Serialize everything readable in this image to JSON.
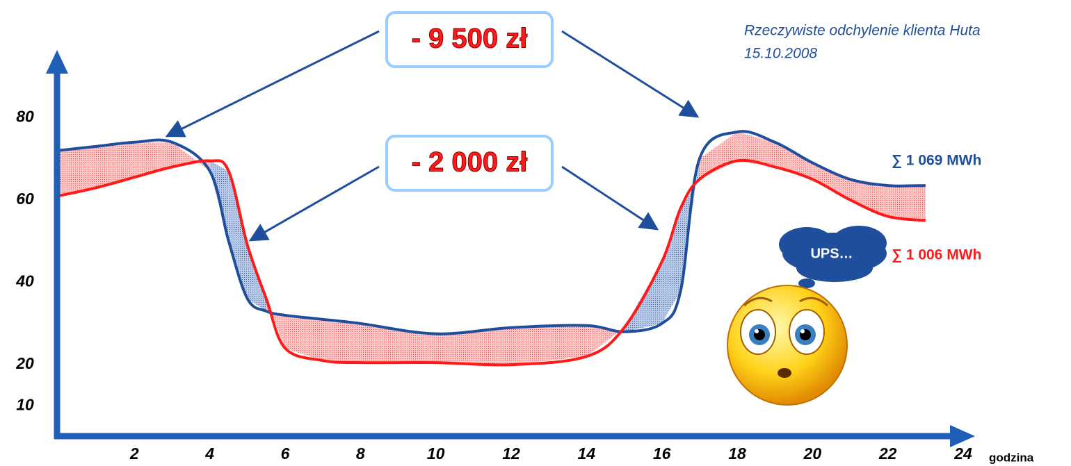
{
  "chart_data": {
    "type": "line",
    "title": "Rzeczywiste odchylenie klienta Huta",
    "subtitle": "15.10.2008",
    "x_label": "godzina",
    "x": [
      0,
      1,
      2,
      3,
      4,
      4.5,
      5,
      5.5,
      6,
      7,
      8,
      10,
      12,
      14,
      15,
      16,
      16.5,
      17,
      18,
      19,
      20,
      21,
      22,
      23
    ],
    "series": [
      {
        "color": "#1f4e9c",
        "total_label": "∑ 1 069 MWh",
        "values": [
          72,
          73,
          74,
          74,
          67,
          50,
          36,
          33,
          32,
          31,
          30,
          27.5,
          29,
          29.5,
          28,
          30,
          38,
          70,
          76.5,
          74,
          69,
          65,
          63.5,
          63.5
        ]
      },
      {
        "color": "#ff1a1a",
        "total_label": "∑ 1 006 MWh",
        "values": [
          61,
          63,
          65.5,
          68,
          69.5,
          67,
          49,
          36,
          24,
          21,
          20.5,
          20.5,
          20,
          22,
          29,
          45,
          58,
          65,
          69.5,
          68,
          65,
          60,
          56,
          55
        ]
      }
    ],
    "annotations": [
      "- 9 500 zł",
      "- 2 000 zł",
      "UPS…"
    ],
    "xlim": [
      0,
      24
    ],
    "xticks": [
      2,
      4,
      6,
      8,
      10,
      12,
      14,
      16,
      18,
      20,
      22,
      24
    ],
    "ylim": [
      3,
      92
    ],
    "yticks": [
      10,
      20,
      40,
      60,
      80
    ]
  }
}
